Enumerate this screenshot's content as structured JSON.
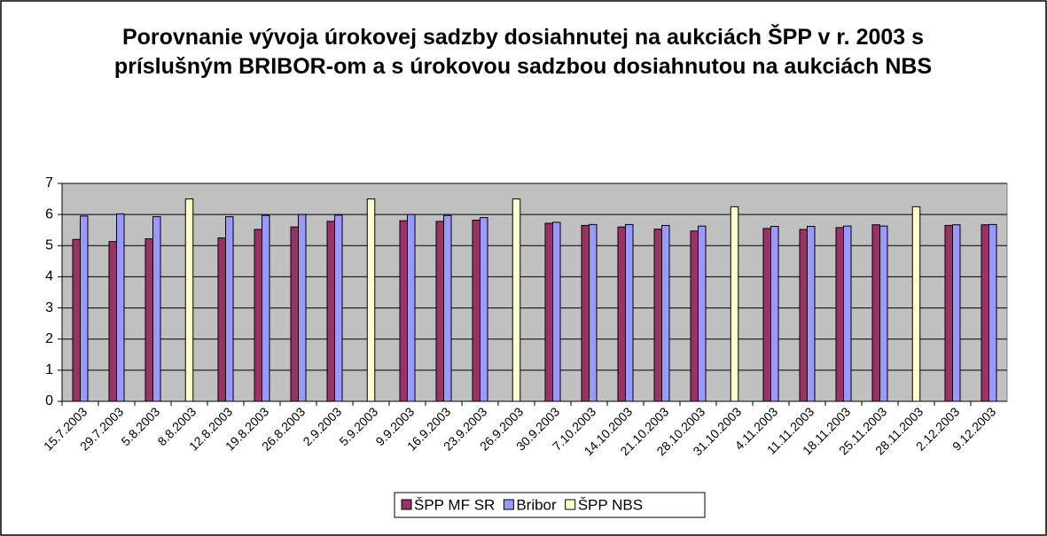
{
  "chart_data": {
    "type": "bar",
    "title": "Porovnanie vývoja úrokovej sadzby dosiahnutej na aukciách ŠPP v r. 2003 s príslušným BRIBOR-om a s úrokovou sadzbou dosiahnutou na aukciách NBS",
    "categories": [
      "15.7.2003",
      "29.7.2003",
      "5.8.2003",
      "8.8.2003",
      "12.8.2003",
      "19.8.2003",
      "26.8.2003",
      "2.9.2003",
      "5.9.2003",
      "9.9.2003",
      "16.9.2003",
      "23.9.2003",
      "26.9.2003",
      "30.9.2003",
      "7.10.2003",
      "14.10.2003",
      "21.10.2003",
      "28.10.2003",
      "31.10.2003",
      "4.11.2003",
      "11.11.2003",
      "18.11.2003",
      "25.11.2003",
      "28.11.2003",
      "2.12.2003",
      "9.12.2003"
    ],
    "series": [
      {
        "name": "ŠPP MF SR",
        "color": "#993366",
        "values": [
          5.2,
          5.13,
          5.22,
          null,
          5.25,
          5.52,
          5.6,
          5.78,
          null,
          5.8,
          5.78,
          5.82,
          null,
          5.72,
          5.65,
          5.6,
          5.53,
          5.47,
          null,
          5.55,
          5.52,
          5.58,
          5.67,
          null,
          5.65,
          5.67
        ]
      },
      {
        "name": "Bribor",
        "color": "#9999ff",
        "values": [
          5.95,
          6.02,
          5.93,
          null,
          5.93,
          5.97,
          6.0,
          5.98,
          null,
          6.0,
          5.97,
          5.9,
          null,
          5.75,
          5.68,
          5.68,
          5.65,
          5.63,
          null,
          5.62,
          5.62,
          5.63,
          5.63,
          null,
          5.67,
          5.68
        ]
      },
      {
        "name": "ŠPP NBS",
        "color": "#ffffcc",
        "values": [
          null,
          null,
          null,
          6.5,
          null,
          null,
          null,
          null,
          6.5,
          null,
          null,
          null,
          6.5,
          null,
          null,
          null,
          null,
          null,
          6.25,
          null,
          null,
          null,
          null,
          6.25,
          null,
          null
        ]
      }
    ],
    "ylim": [
      0,
      7
    ],
    "yticks": [
      0,
      1,
      2,
      3,
      4,
      5,
      6,
      7
    ],
    "grid": true,
    "legend": "bottom",
    "plot_background": "#c0c0c0"
  }
}
